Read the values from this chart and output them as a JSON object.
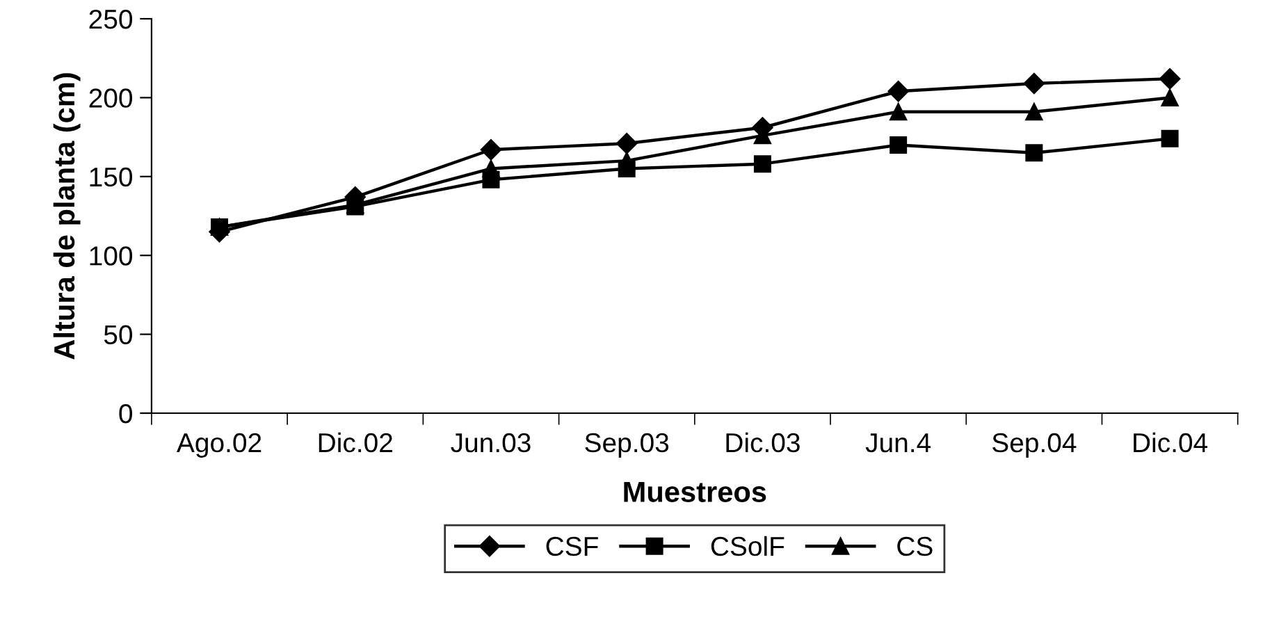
{
  "chart_data": {
    "type": "line",
    "xlabel": "Muestreos",
    "ylabel": "Altura de planta (cm)",
    "categories": [
      "Ago.02",
      "Dic.02",
      "Jun.03",
      "Sep.03",
      "Dic.03",
      "Jun.4",
      "Sep.04",
      "Dic.04"
    ],
    "series": [
      {
        "name": "CSF",
        "color": "#000000",
        "marker": "diamond",
        "values": [
          115,
          137,
          167,
          171,
          181,
          204,
          209,
          212
        ]
      },
      {
        "name": "CSolF",
        "color": "#000000",
        "marker": "square",
        "values": [
          118,
          131,
          148,
          155,
          158,
          170,
          165,
          174
        ]
      },
      {
        "name": "CS",
        "color": "#000000",
        "marker": "triangle",
        "values": [
          118,
          132,
          155,
          160,
          176,
          191,
          191,
          200
        ]
      }
    ],
    "ylim": [
      0,
      250
    ],
    "yticks": [
      0,
      50,
      100,
      150,
      200,
      250
    ],
    "grid": false,
    "legend": "bottom",
    "line_style": "solid"
  }
}
